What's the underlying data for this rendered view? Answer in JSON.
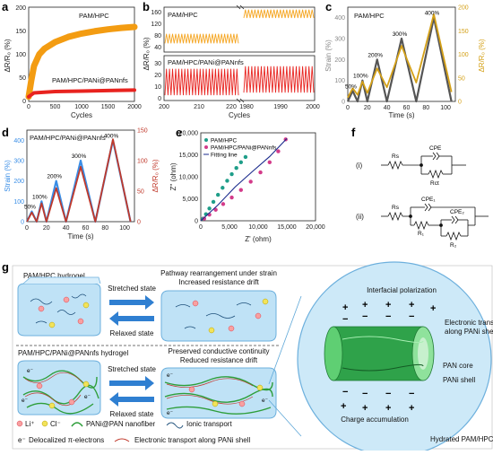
{
  "panels": {
    "a": {
      "letter": "a"
    },
    "b": {
      "letter": "b"
    },
    "c": {
      "letter": "c"
    },
    "d": {
      "letter": "d"
    },
    "e": {
      "letter": "e"
    },
    "f": {
      "letter": "f"
    },
    "g": {
      "letter": "g"
    }
  },
  "chart_data": [
    {
      "id": "a",
      "type": "line",
      "xlabel": "Cycles",
      "ylabel": "ΔR/R₀ (%)",
      "xlim": [
        0,
        2000
      ],
      "ylim": [
        0,
        200
      ],
      "xticks": [
        "0",
        "500",
        "1000",
        "1500",
        "2000"
      ],
      "yticks": [
        "0",
        "50",
        "100",
        "150",
        "200"
      ],
      "series": [
        {
          "name": "PAM/HPC",
          "color": "#f39c12",
          "x": [
            0,
            50,
            100,
            200,
            300,
            500,
            750,
            1000,
            1250,
            1500,
            1750,
            2000
          ],
          "y": [
            10,
            45,
            75,
            100,
            112,
            126,
            137,
            144,
            149,
            153,
            156,
            158
          ]
        },
        {
          "name": "PAM/HPC/PANi@PANnfs",
          "color": "#e8231f",
          "x": [
            0,
            100,
            500,
            1000,
            1500,
            2000
          ],
          "y": [
            10,
            18,
            21,
            22,
            23,
            24
          ]
        }
      ]
    },
    {
      "id": "b",
      "type": "line",
      "xlabel": "Cycles",
      "ylabel": "ΔR/R₀ (%)",
      "top_label": "PAM/HPC",
      "bottom_label": "PAM/HPC/PANi@PANnfs",
      "xticks_left": [
        "200",
        "210",
        "220"
      ],
      "xticks_right": [
        "1980",
        "1990",
        "2000"
      ],
      "yticks_top": [
        "40",
        "80",
        "120",
        "160"
      ],
      "yticks_bottom": [
        "0",
        "10",
        "20",
        "30"
      ],
      "series": [
        {
          "name": "PAM/HPC",
          "color": "#f5a623",
          "segment": "top",
          "left": {
            "mid": 65,
            "amp": 16
          },
          "right": {
            "mid": 148,
            "amp": 14
          }
        },
        {
          "name": "PAM/HPC/PANi@PANnfs",
          "color": "#e8231f",
          "segment": "bottom",
          "left": {
            "mid": 12,
            "amp": 10
          },
          "right": {
            "mid": 14,
            "amp": 10
          }
        }
      ]
    },
    {
      "id": "c",
      "type": "line",
      "title": "PAM/HPC",
      "xlabel": "Time (s)",
      "ylabel_left": "Strain (%)",
      "ylabel_right": "ΔR/R₀ (%)",
      "xlim": [
        0,
        110
      ],
      "ylim_left": [
        0,
        450
      ],
      "ylim_right": [
        0,
        200
      ],
      "xticks": [
        "0",
        "20",
        "40",
        "60",
        "80",
        "100"
      ],
      "yticks_left": [
        "0",
        "100",
        "200",
        "300",
        "400"
      ],
      "yticks_right": [
        "0",
        "50",
        "100",
        "150",
        "200"
      ],
      "annotations": [
        "50%",
        "100%",
        "200%",
        "300%",
        "400%"
      ],
      "series": [
        {
          "name": "Strain",
          "color": "#555555",
          "x": [
            0,
            5,
            10,
            15,
            20,
            30,
            40,
            55,
            70,
            88,
            106
          ],
          "y": [
            0,
            50,
            0,
            100,
            0,
            200,
            0,
            300,
            0,
            400,
            0
          ]
        },
        {
          "name": "ΔR/R₀",
          "color": "#d4a017",
          "x": [
            0,
            5,
            10,
            15,
            20,
            30,
            40,
            55,
            70,
            88,
            106
          ],
          "y": [
            8,
            28,
            14,
            42,
            18,
            70,
            30,
            118,
            40,
            185,
            20
          ]
        }
      ]
    },
    {
      "id": "d",
      "type": "line",
      "title": "PAM/HPC/PANi@PANnfs",
      "xlabel": "Time (s)",
      "ylabel_left": "Strain (%)",
      "ylabel_right": "ΔR/R₀ (%)",
      "xlim": [
        0,
        110
      ],
      "ylim_left": [
        0,
        450
      ],
      "ylim_right": [
        0,
        150
      ],
      "xticks": [
        "0",
        "20",
        "40",
        "60",
        "80",
        "100"
      ],
      "yticks_left": [
        "0",
        "100",
        "200",
        "300",
        "400"
      ],
      "yticks_right": [
        "0",
        "50",
        "100",
        "150"
      ],
      "annotations": [
        "50%",
        "100%",
        "200%",
        "300%",
        "400%"
      ],
      "series": [
        {
          "name": "Strain",
          "color": "#3a8ee6",
          "x": [
            0,
            5,
            10,
            15,
            20,
            30,
            40,
            55,
            70,
            88,
            106
          ],
          "y": [
            0,
            50,
            0,
            100,
            0,
            200,
            0,
            300,
            0,
            400,
            0
          ]
        },
        {
          "name": "ΔR/R₀",
          "color": "#c0392b",
          "x": [
            0,
            5,
            10,
            15,
            20,
            30,
            40,
            55,
            70,
            88,
            106
          ],
          "y": [
            0,
            15,
            0,
            30,
            0,
            55,
            0,
            90,
            0,
            135,
            0
          ]
        }
      ]
    },
    {
      "id": "e",
      "type": "scatter",
      "xlabel": "Z' (ohm)",
      "ylabel": "Z'' (ohm)",
      "xlim": [
        0,
        20000
      ],
      "ylim": [
        0,
        20000
      ],
      "xticks": [
        "0",
        "5,000",
        "10,000",
        "15,000",
        "20,000"
      ],
      "yticks": [
        "0",
        "5,000",
        "10,000",
        "15,000",
        "20,000"
      ],
      "series": [
        {
          "name": "PAM/HPC",
          "color": "#1f9e89",
          "marker": "circle",
          "x": [
            400,
            900,
            1500,
            2200,
            3000,
            3800,
            4600,
            5400,
            6200,
            7000,
            7800
          ],
          "y": [
            500,
            1500,
            2800,
            4300,
            5900,
            7500,
            9100,
            10600,
            12000,
            13300,
            14500
          ]
        },
        {
          "name": "PAM/HPC/PANi@PANnfs",
          "color": "#d33b8a",
          "marker": "circle",
          "x": [
            600,
            1500,
            2600,
            3900,
            5400,
            7000,
            8700,
            10400,
            12000,
            13500,
            14800
          ],
          "y": [
            500,
            1400,
            2500,
            3800,
            5300,
            7000,
            8900,
            11000,
            13300,
            15800,
            18500
          ]
        },
        {
          "name": "Fitting line",
          "color": "#1a2a8c",
          "marker": "line",
          "x": [
            0,
            3000,
            6000,
            9000,
            12000,
            15000
          ],
          "y": [
            0,
            3600,
            7700,
            11200,
            14600,
            18700
          ]
        }
      ]
    }
  ],
  "circuits": {
    "i": {
      "label": "(i)",
      "r": "Rs",
      "cpe": "CPE",
      "rct": "Rct"
    },
    "ii": {
      "label": "(ii)",
      "r": "Rs",
      "cpe1": "CPE₁",
      "r1": "R₁",
      "cpe2": "CPE₂",
      "r2": "R₂"
    }
  },
  "schematic": {
    "top_gel": "PAM/HPC hydrogel",
    "top_caption_1": "Pathway rearrangement under strain",
    "top_caption_2": "Increased resistance drift",
    "bottom_gel": "PAM/HPC/PANi@PANnfs hydrogel",
    "bottom_caption_1": "Preserved conductive continuity",
    "bottom_caption_2": "Reduced resistance drift",
    "stretched": "Stretched state",
    "relaxed": "Relaxed state",
    "zoom_interfacial": "Interfacial polarization",
    "zoom_electronic_1": "Electronic transport",
    "zoom_electronic_2": "along PANi shell",
    "zoom_pan_core": "PAN core",
    "zoom_pani_shell": "PANi shell",
    "zoom_charge": "Charge accumulation",
    "zoom_matrix": "Hydrated PAM/HPC matrix",
    "electron": "e⁻",
    "legend": {
      "li": "Li⁺",
      "cl": "Cl⁻",
      "fiber": "PANi@PAN nanofiber",
      "ionic": "Ionic transport",
      "electrons": "Delocalized π-electrons",
      "electronic": "Electronic transport along PANi shell"
    }
  },
  "colors": {
    "orange": "#f39c12",
    "red": "#e8231f",
    "gel": "#a9d6f0",
    "gel_edge": "#5fa8d8",
    "arrow": "#2f7fd1",
    "pani": "#2e7d32",
    "pani_light": "#7fd18a"
  }
}
